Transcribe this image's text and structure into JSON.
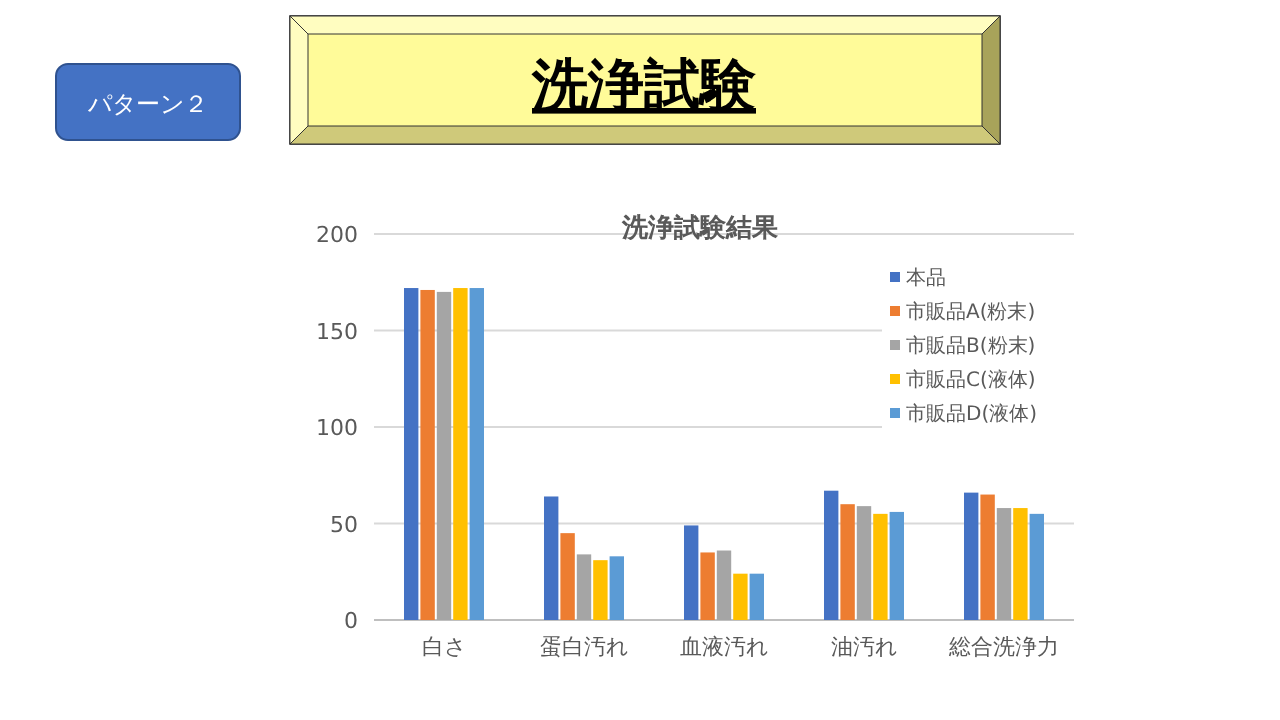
{
  "chart_data": {
    "type": "bar",
    "title": "洗浄試験",
    "subtitle": "洗浄試験結果",
    "annotations": [
      "パターン２"
    ],
    "categories": [
      "白さ",
      "蛋白汚れ",
      "血液汚れ",
      "油汚れ",
      "総合洗浄力"
    ],
    "series": [
      {
        "name": "本品",
        "color": "#4472c4",
        "values": [
          172,
          64,
          49,
          67,
          66
        ]
      },
      {
        "name": "市販品A(粉末)",
        "color": "#ed7d31",
        "values": [
          171,
          45,
          35,
          60,
          65
        ]
      },
      {
        "name": "市販品B(粉末)",
        "color": "#a5a5a5",
        "values": [
          170,
          34,
          36,
          59,
          58
        ]
      },
      {
        "name": "市販品C(液体)",
        "color": "#ffc000",
        "values": [
          172,
          31,
          24,
          55,
          58
        ]
      },
      {
        "name": "市販品D(液体)",
        "color": "#5b9bd5",
        "values": [
          172,
          33,
          24,
          56,
          55
        ]
      }
    ],
    "ylim": [
      0,
      200
    ],
    "yticks": [
      0,
      50,
      100,
      150,
      200
    ],
    "grid": "y",
    "legend": "top right"
  }
}
